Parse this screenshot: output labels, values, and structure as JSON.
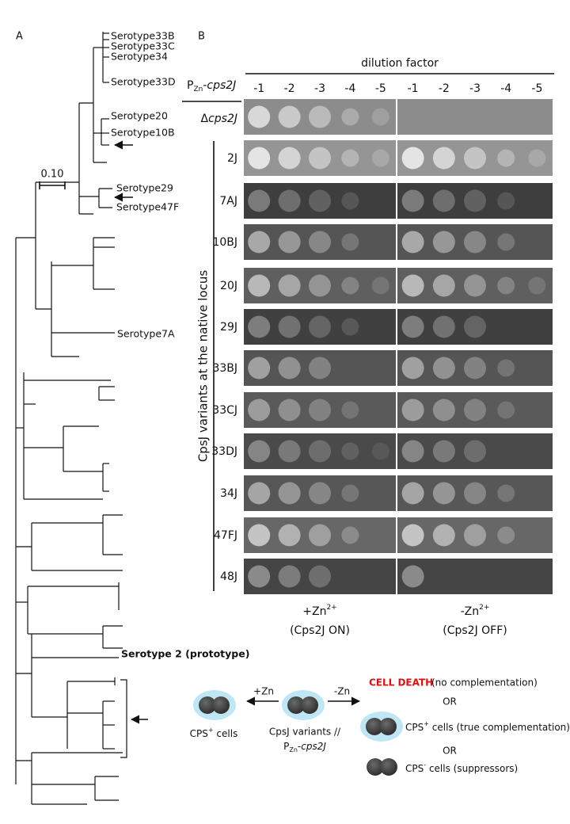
{
  "panel_a": {
    "label": "A",
    "scale_bar": "0.10",
    "leaves": [
      {
        "name": "Serotype33B",
        "color": "#2f7d1f"
      },
      {
        "name": "Serotype33C",
        "color": "#2f7d1f"
      },
      {
        "name": "Serotype34",
        "color": "#2f7d1f"
      },
      {
        "name": "Serotype33D",
        "color": "#2f7d1f"
      },
      {
        "name": "Serotype20",
        "color": "#7fd12b"
      },
      {
        "name": "Serotype10B",
        "color": "#2f7d1f"
      },
      {
        "name": "Serotype29",
        "color": "#7fd12b"
      },
      {
        "name": "Serotype47F",
        "color": "#7fd12b"
      },
      {
        "name": "Serotype7A",
        "color": "#2f7d1f"
      }
    ],
    "prototype": "Serotype 2 (prototype)"
  },
  "panel_b": {
    "label": "B",
    "header": "dilution factor",
    "promoter": {
      "p": "P",
      "sub": "Zn",
      "dash": "-",
      "gene": "cps2J"
    },
    "deletion": {
      "delta": "Δ",
      "gene": "cps2J"
    },
    "strains": [
      "2J",
      "7AJ",
      "10BJ",
      "20J",
      "29J",
      "33BJ",
      "33CJ",
      "33DJ",
      "34J",
      "47FJ",
      "48J"
    ],
    "axis_label": "CpsJ variants at the native locus",
    "conditions": [
      {
        "dilutions": [
          "-1",
          "-2",
          "-3",
          "-4",
          "-5"
        ],
        "ion": "+Zn",
        "charge": "2+",
        "state": "(Cps2J ON)",
        "state_color": "#22b022"
      },
      {
        "dilutions": [
          "-1",
          "-2",
          "-3",
          "-4",
          "-5"
        ],
        "ion": "-Zn",
        "charge": "2+",
        "state": "(Cps2J OFF)",
        "state_color": "#e02020"
      }
    ]
  },
  "schematic": {
    "plus_zn": "+Zn",
    "minus_zn": "-Zn",
    "on_cells": {
      "name": "CPS",
      "sup": "+",
      "rest": " cells"
    },
    "variants": "CpsJ variants //",
    "promoter": {
      "p": "P",
      "sub": "Zn",
      "dash": "-",
      "gene": "cps2J"
    },
    "death": "CELL DEATH",
    "death_note": "(no complementation)",
    "or_1": "OR",
    "true_cells": {
      "name": "CPS",
      "sup": "+",
      "rest": " cells (true complementation)"
    },
    "or_2": "OR",
    "suppressor_cells": {
      "name": "CPS",
      "sup": "-",
      "rest": " cells (suppressors)"
    }
  }
}
